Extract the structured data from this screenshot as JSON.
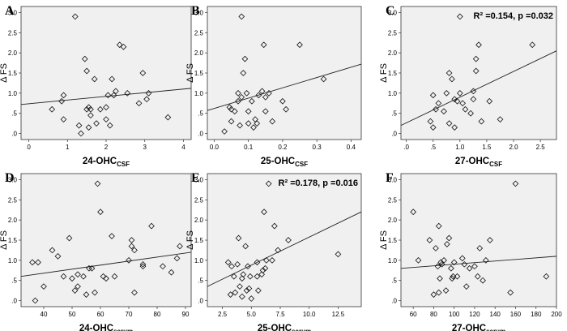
{
  "chart_data": [
    {
      "type": "scatter",
      "letter": "A",
      "xlabel": "24-OHC",
      "xlabel_sub": "CSF",
      "ylabel": "Δ FS",
      "xlim": [
        -0.2,
        4.2
      ],
      "xticks": [
        0,
        1,
        2,
        3,
        4
      ],
      "xtick_labels": [
        "0",
        "1",
        "2",
        "3",
        "4"
      ],
      "ylim": [
        -0.15,
        3.15
      ],
      "yticks": [
        0,
        0.5,
        1,
        1.5,
        2,
        2.5,
        3
      ],
      "ytick_labels": [
        ".0",
        ".5",
        "1.0",
        "1.5",
        "2.0",
        "2.5",
        "3.0"
      ],
      "fit": {
        "x": [
          -0.2,
          4.2
        ],
        "y": [
          0.72,
          1.12
        ]
      },
      "annotation": "",
      "points": [
        [
          0.6,
          0.6
        ],
        [
          0.85,
          0.8
        ],
        [
          0.9,
          0.95
        ],
        [
          0.9,
          0.35
        ],
        [
          1.2,
          2.9
        ],
        [
          1.3,
          0.2
        ],
        [
          1.35,
          0.0
        ],
        [
          1.45,
          1.85
        ],
        [
          1.5,
          1.55
        ],
        [
          1.5,
          0.6
        ],
        [
          1.55,
          0.65
        ],
        [
          1.55,
          0.15
        ],
        [
          1.6,
          0.45
        ],
        [
          1.6,
          0.6
        ],
        [
          1.7,
          1.35
        ],
        [
          1.75,
          0.25
        ],
        [
          1.85,
          0.6
        ],
        [
          2.0,
          0.65
        ],
        [
          2.0,
          0.35
        ],
        [
          2.05,
          0.95
        ],
        [
          2.1,
          0.2
        ],
        [
          2.15,
          1.35
        ],
        [
          2.2,
          0.95
        ],
        [
          2.25,
          1.05
        ],
        [
          2.35,
          2.2
        ],
        [
          2.45,
          2.15
        ],
        [
          2.55,
          1.0
        ],
        [
          2.85,
          0.75
        ],
        [
          2.95,
          1.5
        ],
        [
          3.05,
          0.85
        ],
        [
          3.1,
          1.0
        ],
        [
          3.6,
          0.4
        ]
      ]
    },
    {
      "type": "scatter",
      "letter": "B",
      "xlabel": "25-OHC",
      "xlabel_sub": "CSF",
      "ylabel": "Δ FS",
      "xlim": [
        -0.02,
        0.43
      ],
      "xticks": [
        0.0,
        0.1,
        0.2,
        0.3,
        0.4
      ],
      "xtick_labels": [
        "0.0",
        "0.1",
        "0.2",
        "0.3",
        "0.4"
      ],
      "ylim": [
        -0.15,
        3.15
      ],
      "yticks": [
        0,
        0.5,
        1,
        1.5,
        2,
        2.5,
        3
      ],
      "ytick_labels": [
        ".0",
        ".5",
        "1.0",
        "1.5",
        "2.0",
        "2.5",
        "3.0"
      ],
      "fit": {
        "x": [
          -0.02,
          0.43
        ],
        "y": [
          0.57,
          1.72
        ]
      },
      "annotation": "",
      "points": [
        [
          0.03,
          0.05
        ],
        [
          0.045,
          0.65
        ],
        [
          0.05,
          0.6
        ],
        [
          0.05,
          0.3
        ],
        [
          0.06,
          0.55
        ],
        [
          0.07,
          0.8
        ],
        [
          0.07,
          1.0
        ],
        [
          0.075,
          0.2
        ],
        [
          0.08,
          2.9
        ],
        [
          0.08,
          0.9
        ],
        [
          0.085,
          1.5
        ],
        [
          0.09,
          1.85
        ],
        [
          0.095,
          1.0
        ],
        [
          0.1,
          0.55
        ],
        [
          0.1,
          0.25
        ],
        [
          0.11,
          0.8
        ],
        [
          0.115,
          0.15
        ],
        [
          0.12,
          0.35
        ],
        [
          0.125,
          0.25
        ],
        [
          0.13,
          0.95
        ],
        [
          0.14,
          1.05
        ],
        [
          0.145,
          2.2
        ],
        [
          0.15,
          0.9
        ],
        [
          0.15,
          0.55
        ],
        [
          0.16,
          1.0
        ],
        [
          0.17,
          0.3
        ],
        [
          0.2,
          0.8
        ],
        [
          0.21,
          0.6
        ],
        [
          0.25,
          2.2
        ],
        [
          0.32,
          1.35
        ]
      ]
    },
    {
      "type": "scatter",
      "letter": "C",
      "xlabel": "27-OHC",
      "xlabel_sub": "CSF",
      "ylabel": "Δ FS",
      "xlim": [
        -0.1,
        2.8
      ],
      "xticks": [
        0,
        0.5,
        1,
        1.5,
        2,
        2.5
      ],
      "xtick_labels": [
        ".0",
        ".5",
        "1.0",
        "1.5",
        "2.0",
        "2.5"
      ],
      "ylim": [
        -0.15,
        3.15
      ],
      "yticks": [
        0,
        0.5,
        1,
        1.5,
        2,
        2.5,
        3
      ],
      "ytick_labels": [
        ".0",
        ".5",
        "1.0",
        "1.5",
        "2.0",
        "2.5",
        "3.0"
      ],
      "fit": {
        "x": [
          -0.1,
          2.8
        ],
        "y": [
          0.2,
          2.05
        ]
      },
      "annotation": "R² =0.154, p =0.032",
      "points": [
        [
          0.45,
          0.3
        ],
        [
          0.5,
          0.95
        ],
        [
          0.5,
          0.15
        ],
        [
          0.55,
          0.6
        ],
        [
          0.6,
          0.75
        ],
        [
          0.7,
          0.55
        ],
        [
          0.75,
          1.0
        ],
        [
          0.8,
          1.5
        ],
        [
          0.8,
          0.25
        ],
        [
          0.85,
          1.35
        ],
        [
          0.9,
          0.15
        ],
        [
          0.9,
          0.85
        ],
        [
          0.95,
          0.8
        ],
        [
          1.0,
          2.9
        ],
        [
          1.0,
          1.0
        ],
        [
          1.05,
          0.75
        ],
        [
          1.1,
          0.6
        ],
        [
          1.2,
          0.5
        ],
        [
          1.25,
          1.05
        ],
        [
          1.25,
          0.85
        ],
        [
          1.3,
          1.85
        ],
        [
          1.3,
          1.55
        ],
        [
          1.35,
          2.2
        ],
        [
          1.4,
          0.3
        ],
        [
          1.55,
          0.8
        ],
        [
          1.75,
          0.35
        ],
        [
          2.35,
          2.2
        ]
      ]
    },
    {
      "type": "scatter",
      "letter": "D",
      "xlabel": "24-OHC",
      "xlabel_sub": "serum",
      "ylabel": "Δ FS",
      "xlim": [
        32,
        92
      ],
      "xticks": [
        40,
        50,
        60,
        70,
        80,
        90
      ],
      "xtick_labels": [
        "40",
        "50",
        "60",
        "70",
        "80",
        "90"
      ],
      "ylim": [
        -0.15,
        3.15
      ],
      "yticks": [
        0,
        0.5,
        1,
        1.5,
        2,
        2.5,
        3
      ],
      "ytick_labels": [
        ".0",
        ".5",
        "1.0",
        "1.5",
        "2.0",
        "2.5",
        "3.0"
      ],
      "fit": {
        "x": [
          32,
          92
        ],
        "y": [
          0.6,
          1.2
        ]
      },
      "annotation": "",
      "points": [
        [
          36,
          0.95
        ],
        [
          37,
          0.0
        ],
        [
          38,
          0.95
        ],
        [
          40,
          0.35
        ],
        [
          43,
          1.25
        ],
        [
          45,
          1.1
        ],
        [
          47,
          0.6
        ],
        [
          49,
          1.55
        ],
        [
          50,
          0.55
        ],
        [
          51,
          0.25
        ],
        [
          52,
          0.35
        ],
        [
          52,
          0.65
        ],
        [
          54,
          0.6
        ],
        [
          55,
          0.15
        ],
        [
          56,
          0.8
        ],
        [
          57,
          0.8
        ],
        [
          58,
          0.2
        ],
        [
          59,
          2.9
        ],
        [
          60,
          2.2
        ],
        [
          61,
          0.6
        ],
        [
          62,
          0.55
        ],
        [
          64,
          1.6
        ],
        [
          65,
          0.6
        ],
        [
          70,
          1.0
        ],
        [
          71,
          1.5
        ],
        [
          71,
          1.35
        ],
        [
          72,
          1.25
        ],
        [
          72,
          0.2
        ],
        [
          75,
          0.9
        ],
        [
          75,
          0.85
        ],
        [
          78,
          1.85
        ],
        [
          82,
          0.85
        ],
        [
          85,
          0.7
        ],
        [
          87,
          1.05
        ],
        [
          88,
          1.35
        ]
      ]
    },
    {
      "type": "scatter",
      "letter": "E",
      "xlabel": "25-OHC",
      "xlabel_sub": "serum",
      "ylabel": "Δ FS",
      "xlim": [
        1.2,
        14.5
      ],
      "xticks": [
        2.5,
        5.0,
        7.5,
        10.0,
        12.5
      ],
      "xtick_labels": [
        "2.5",
        "5.0",
        "7.5",
        "10.0",
        "12.5"
      ],
      "ylim": [
        -0.15,
        3.15
      ],
      "yticks": [
        0,
        0.5,
        1,
        1.5,
        2,
        2.5,
        3
      ],
      "ytick_labels": [
        ".0",
        ".5",
        "1.0",
        "1.5",
        "2.0",
        "2.5",
        "3.0"
      ],
      "fit": {
        "x": [
          1.2,
          14.5
        ],
        "y": [
          0.35,
          2.2
        ]
      },
      "annotation": "R² =0.178, p =0.016",
      "points": [
        [
          3.0,
          0.95
        ],
        [
          3.2,
          0.15
        ],
        [
          3.3,
          0.85
        ],
        [
          3.5,
          0.6
        ],
        [
          3.6,
          0.2
        ],
        [
          3.8,
          0.9
        ],
        [
          3.9,
          1.55
        ],
        [
          4.0,
          0.35
        ],
        [
          4.2,
          0.55
        ],
        [
          4.2,
          0.1
        ],
        [
          4.3,
          0.65
        ],
        [
          4.5,
          1.35
        ],
        [
          4.6,
          0.25
        ],
        [
          4.7,
          0.85
        ],
        [
          4.8,
          0.3
        ],
        [
          4.9,
          0.6
        ],
        [
          5.0,
          0.05
        ],
        [
          5.5,
          0.95
        ],
        [
          5.5,
          0.6
        ],
        [
          5.6,
          0.25
        ],
        [
          5.9,
          0.65
        ],
        [
          6.0,
          0.75
        ],
        [
          6.1,
          2.2
        ],
        [
          6.2,
          0.8
        ],
        [
          6.3,
          1.0
        ],
        [
          6.5,
          2.9
        ],
        [
          6.8,
          1.0
        ],
        [
          7.0,
          1.85
        ],
        [
          7.3,
          1.25
        ],
        [
          8.2,
          1.5
        ],
        [
          12.5,
          1.15
        ]
      ]
    },
    {
      "type": "scatter",
      "letter": "F",
      "xlabel": "27-OHC",
      "xlabel_sub": "serum",
      "ylabel": "Δ FS",
      "xlim": [
        48,
        200
      ],
      "xticks": [
        60,
        80,
        100,
        120,
        140,
        160,
        180,
        200
      ],
      "xtick_labels": [
        "60",
        "80",
        "100",
        "120",
        "140",
        "160",
        "180",
        "200"
      ],
      "ylim": [
        -0.15,
        3.15
      ],
      "yticks": [
        0,
        0.5,
        1,
        1.5,
        2,
        2.5,
        3
      ],
      "ytick_labels": [
        ".0",
        ".5",
        "1.0",
        "1.5",
        "2.0",
        "2.5",
        "3.0"
      ],
      "fit": {
        "x": [
          48,
          200
        ],
        "y": [
          0.8,
          1.1
        ]
      },
      "annotation": "",
      "points": [
        [
          60,
          2.2
        ],
        [
          65,
          1.0
        ],
        [
          76,
          1.5
        ],
        [
          80,
          0.15
        ],
        [
          82,
          1.3
        ],
        [
          84,
          0.85
        ],
        [
          85,
          1.85
        ],
        [
          85,
          0.2
        ],
        [
          86,
          0.55
        ],
        [
          87,
          0.95
        ],
        [
          88,
          0.9
        ],
        [
          90,
          1.0
        ],
        [
          92,
          0.25
        ],
        [
          93,
          1.4
        ],
        [
          95,
          1.55
        ],
        [
          97,
          0.8
        ],
        [
          98,
          0.55
        ],
        [
          99,
          0.6
        ],
        [
          100,
          0.95
        ],
        [
          103,
          0.6
        ],
        [
          108,
          1.05
        ],
        [
          110,
          0.9
        ],
        [
          112,
          0.35
        ],
        [
          115,
          0.8
        ],
        [
          120,
          0.85
        ],
        [
          123,
          0.6
        ],
        [
          125,
          1.3
        ],
        [
          128,
          0.5
        ],
        [
          131,
          1.0
        ],
        [
          135,
          1.5
        ],
        [
          155,
          0.2
        ],
        [
          160,
          2.9
        ],
        [
          190,
          0.6
        ]
      ]
    }
  ]
}
